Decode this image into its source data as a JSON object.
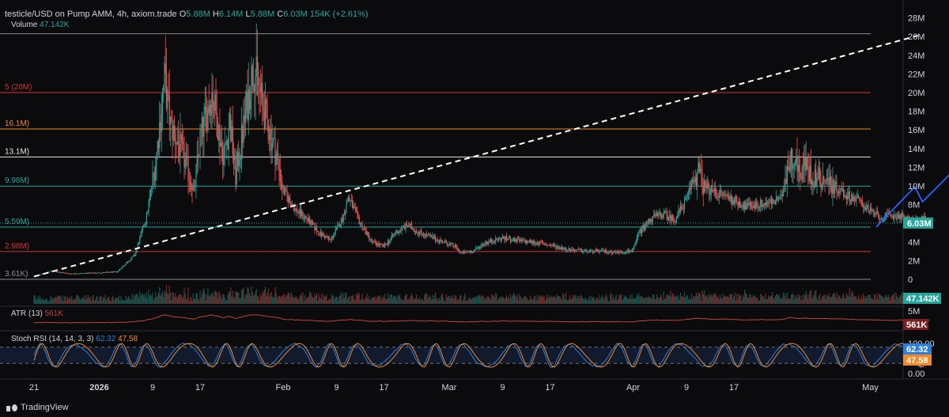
{
  "header": {
    "symbol": "testicle/USD on Pump AMM, 4h, axiom.trade",
    "open_label": "O",
    "open": "5.88M",
    "high_label": "H",
    "high": "6.14M",
    "low_label": "L",
    "low": "5.88M",
    "close_label": "C",
    "close": "6.03M",
    "change": "154K (+2.61%)",
    "volume_label": "Volume",
    "volume": "47.142K"
  },
  "indicators": {
    "atr_label": "ATR (13)",
    "atr_value": "561K",
    "stoch_label": "Stoch RSI (14, 14, 3, 3)",
    "stoch_k": "62.32",
    "stoch_d": "47.58"
  },
  "branding": {
    "name": "TradingView"
  },
  "chart_data": {
    "type": "candlestick",
    "price_axis": {
      "ticks": [
        "28M",
        "26M",
        "24M",
        "22M",
        "20M",
        "18M",
        "16M",
        "14M",
        "12M",
        "10M",
        "8M",
        "6M",
        "4M",
        "2M",
        "0"
      ],
      "tick_values": [
        28,
        26,
        24,
        22,
        20,
        18,
        16,
        14,
        12,
        10,
        8,
        6,
        4,
        2,
        0
      ],
      "unit": "M",
      "range": [
        0,
        28
      ]
    },
    "time_axis": {
      "ticks": [
        "21",
        "2026",
        "9",
        "17",
        "Feb",
        "9",
        "17",
        "Mar",
        "9",
        "17",
        "Apr",
        "9",
        "17",
        "May"
      ],
      "tick_days": [
        0,
        11,
        20,
        28,
        42,
        51,
        59,
        70,
        79,
        87,
        101,
        110,
        118,
        141
      ]
    },
    "levels": [
      {
        "value": 26.3,
        "label": "",
        "color": "#8a8d93"
      },
      {
        "value": 20,
        "label": "5 (20M)",
        "color": "#d1353a"
      },
      {
        "value": 16.1,
        "label": "16.1M)",
        "color": "#f08a2b"
      },
      {
        "value": 13.1,
        "label": "13.1M)",
        "color": "#e6e6e6"
      },
      {
        "value": 9.98,
        "label": "9.98M)",
        "color": "#26a69a"
      },
      {
        "value": 5.59,
        "label": "5.59M)",
        "color": "#26a69a"
      },
      {
        "value": 2.98,
        "label": "2.98M)",
        "color": "#d1353a"
      },
      {
        "value": 0,
        "label": "3.61K)",
        "color": "#8a8d93"
      }
    ],
    "trendline": {
      "from": [
        0,
        0.3
      ],
      "to": [
        149,
        26.1
      ],
      "style": "dashed"
    },
    "projection": [
      [
        142,
        5.6
      ],
      [
        148.5,
        9.9
      ],
      [
        149.8,
        8.3
      ],
      [
        157,
        12.9
      ],
      [
        159,
        11.1
      ],
      [
        166,
        16.4
      ],
      [
        169,
        15.6
      ]
    ],
    "price_series": [
      [
        0,
        0.3
      ],
      [
        3,
        0.9
      ],
      [
        6,
        0.6
      ],
      [
        11,
        0.7
      ],
      [
        14,
        0.8
      ],
      [
        17,
        2.6
      ],
      [
        19,
        6.8
      ],
      [
        20.5,
        12.5
      ],
      [
        22,
        21.5
      ],
      [
        23,
        16.5
      ],
      [
        25,
        13.5
      ],
      [
        27,
        9.5
      ],
      [
        28,
        15
      ],
      [
        30,
        20
      ],
      [
        32,
        13
      ],
      [
        33,
        17
      ],
      [
        34,
        11
      ],
      [
        36,
        19
      ],
      [
        37,
        23
      ],
      [
        39,
        17.5
      ],
      [
        41,
        13
      ],
      [
        42,
        9.5
      ],
      [
        44,
        7.5
      ],
      [
        46,
        6.5
      ],
      [
        48,
        5
      ],
      [
        50,
        4.2
      ],
      [
        52,
        6.5
      ],
      [
        53,
        8.8
      ],
      [
        55,
        6
      ],
      [
        57,
        4
      ],
      [
        59,
        3.5
      ],
      [
        61,
        5
      ],
      [
        63,
        5.8
      ],
      [
        65,
        5
      ],
      [
        67,
        4.5
      ],
      [
        69,
        4
      ],
      [
        71,
        3.5
      ],
      [
        72,
        2.8
      ],
      [
        74,
        3
      ],
      [
        76,
        3.9
      ],
      [
        79,
        4.4
      ],
      [
        82,
        4.1
      ],
      [
        85,
        3.9
      ],
      [
        88,
        3.5
      ],
      [
        90,
        3.2
      ],
      [
        93,
        3
      ],
      [
        96,
        3
      ],
      [
        99,
        2.9
      ],
      [
        101,
        3.1
      ],
      [
        102,
        5
      ],
      [
        104,
        6.5
      ],
      [
        106,
        7
      ],
      [
        108,
        6.4
      ],
      [
        110,
        8.5
      ],
      [
        111,
        10.5
      ],
      [
        112,
        11.5
      ],
      [
        113,
        10
      ],
      [
        114,
        9.5
      ],
      [
        116,
        9.1
      ],
      [
        118,
        8.5
      ],
      [
        120,
        7.8
      ],
      [
        122,
        8
      ],
      [
        124,
        8.2
      ],
      [
        126,
        8.6
      ],
      [
        127,
        12
      ],
      [
        128,
        13.3
      ],
      [
        129,
        11.5
      ],
      [
        130,
        12.3
      ],
      [
        131,
        11
      ],
      [
        133,
        10.8
      ],
      [
        135,
        10
      ],
      [
        137,
        9
      ],
      [
        139,
        8.5
      ],
      [
        141,
        7.3
      ],
      [
        143,
        6.5
      ],
      [
        144,
        6.8
      ],
      [
        146,
        6.8
      ],
      [
        148,
        6.2
      ],
      [
        150,
        6.4
      ],
      [
        151,
        6
      ]
    ],
    "current_price": 6.03,
    "current_price_label": "6.03M",
    "volume_pane": {
      "current": "47.142K",
      "axis_tick": "5M"
    },
    "atr_pane": {
      "current": "561K"
    },
    "stoch_pane": {
      "ticks": [
        "100.00",
        "0.00"
      ],
      "k": 62.32,
      "d": 47.58,
      "bands": [
        80,
        20
      ]
    },
    "colors": {
      "up": "#26a69a",
      "down": "#ef5350",
      "projection": "#2962ff",
      "trendline": "#ffffff",
      "stoch_k": "#2f7fd6",
      "stoch_d": "#f08a2b",
      "atr": "#c2413b"
    }
  }
}
